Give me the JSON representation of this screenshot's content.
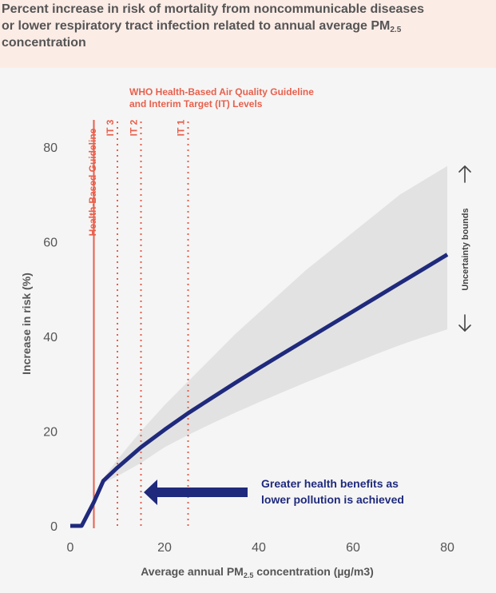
{
  "title": {
    "line1": "Percent increase in risk of mortality from noncommunicable diseases",
    "line2_pre": "or lower respiratory tract infection related to annual average PM",
    "line2_sub": "2.5",
    "line3": "concentration"
  },
  "who_title": {
    "line1": "WHO Health-Based Air Quality Guideline",
    "line2": "and Interim Target (IT) Levels"
  },
  "callout": {
    "line1": "Greater health benefits as",
    "line2": "lower pollution is achieved"
  },
  "uncertainty_label": "Uncertainty bounds",
  "colors": {
    "curve": "#1f2a7c",
    "guideline": "#e8604c",
    "band": "#e2e2e2",
    "header_bg": "#fcece6",
    "plot_bg": "#f5f5f5",
    "text": "#555555"
  },
  "chart_data": {
    "type": "line",
    "xlabel_pre": "Average annual PM",
    "xlabel_sub": "2.5",
    "xlabel_post": " concentration (µg/m3)",
    "ylabel": "Increase in risk (%)",
    "xlim": [
      0,
      80
    ],
    "ylim": [
      0,
      80
    ],
    "x_ticks": [
      0,
      20,
      40,
      60,
      80
    ],
    "y_ticks": [
      0,
      20,
      40,
      60,
      80
    ],
    "x_tick_labels": [
      "0",
      "20",
      "40",
      "60",
      "80"
    ],
    "y_tick_labels": [
      "0",
      "20",
      "40",
      "60",
      "80"
    ],
    "series": [
      {
        "x": [
          0,
          2.4,
          5,
          7,
          10,
          15,
          20,
          25,
          30,
          35,
          40,
          45,
          50,
          55,
          60,
          65,
          70,
          75,
          80
        ],
        "y": [
          0,
          0,
          5,
          9.5,
          12.3,
          16.6,
          20.3,
          23.8,
          27.0,
          30.2,
          33.3,
          36.3,
          39.3,
          42.3,
          45.3,
          48.3,
          51.3,
          54.3,
          57.3
        ]
      }
    ],
    "uncertainty_band": {
      "x": [
        7,
        10,
        15,
        20,
        25,
        30,
        35,
        40,
        45,
        50,
        55,
        60,
        65,
        70,
        75,
        80
      ],
      "upper": [
        10,
        14,
        20,
        25.5,
        30.5,
        35.5,
        40.5,
        45,
        49.5,
        54,
        58,
        62,
        66,
        70,
        73,
        76
      ],
      "lower": [
        9,
        10.5,
        13.3,
        16.6,
        19.2,
        21.6,
        23.9,
        26.1,
        28.2,
        30.3,
        32.3,
        34.3,
        36.3,
        38.2,
        39.9,
        41.5
      ]
    },
    "guideline": {
      "x": 5,
      "label": "Health-Based Guideline"
    },
    "interim_targets": [
      {
        "x": 10,
        "label": "IT 3"
      },
      {
        "x": 15,
        "label": "IT 2"
      },
      {
        "x": 25,
        "label": "IT 1"
      }
    ]
  }
}
